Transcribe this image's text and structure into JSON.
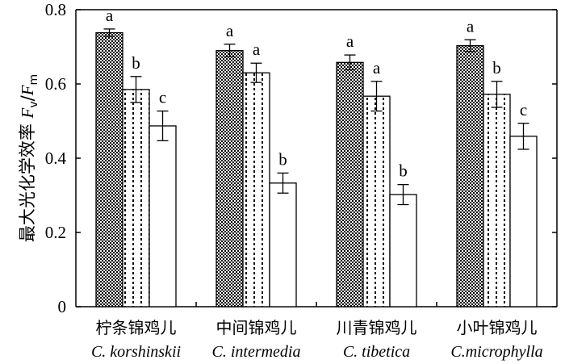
{
  "chart_data": {
    "type": "bar",
    "title": "",
    "xlabel": "",
    "ylabel": {
      "text": "最大光化学效率",
      "symbol_F": "F",
      "sub_v": "v",
      "slash": "/",
      "sub_m": "m"
    },
    "ylim": [
      0,
      0.8
    ],
    "yticks": [
      "0",
      "0.2",
      "0.4",
      "0.6",
      "0.8"
    ],
    "ytick_values": [
      0,
      0.2,
      0.4,
      0.6,
      0.8
    ],
    "grid": false,
    "legend": "none",
    "categories": [
      {
        "cn": "柠条锦鸡儿",
        "en": "C. korshinskii"
      },
      {
        "cn": "中间锦鸡儿",
        "en": "C. intermedia"
      },
      {
        "cn": "川青锦鸡儿",
        "en": "C. tibetica"
      },
      {
        "cn": "小叶锦鸡儿",
        "en": "C.microphylla"
      }
    ],
    "series": [
      {
        "pattern": "checker",
        "values": [
          0.738,
          0.69,
          0.658,
          0.703
        ],
        "errors": [
          0.01,
          0.017,
          0.02,
          0.016
        ],
        "letters": [
          "a",
          "a",
          "a",
          "a"
        ]
      },
      {
        "pattern": "dots",
        "values": [
          0.585,
          0.63,
          0.567,
          0.572
        ],
        "errors": [
          0.035,
          0.026,
          0.04,
          0.035
        ],
        "letters": [
          "b",
          "a",
          "a",
          "b"
        ]
      },
      {
        "pattern": "white",
        "values": [
          0.487,
          0.333,
          0.302,
          0.459
        ],
        "errors": [
          0.04,
          0.027,
          0.027,
          0.035
        ],
        "letters": [
          "c",
          "b",
          "b",
          "c"
        ]
      }
    ]
  }
}
